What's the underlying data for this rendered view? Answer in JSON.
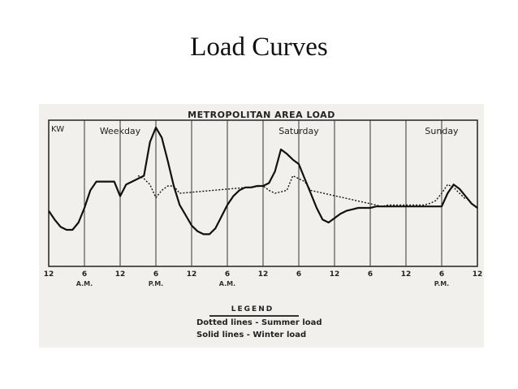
{
  "slide": {
    "title": "Load Curves"
  },
  "chart_data": {
    "type": "line",
    "title": "METROPOLITAN AREA LOAD",
    "ylabel": "KW",
    "day_labels": [
      "Weekday",
      "Saturday",
      "Sunday"
    ],
    "x_tick_labels": [
      "12",
      "6",
      "12",
      "6",
      "12",
      "6",
      "12",
      "6",
      "12",
      "6",
      "12",
      "6",
      "12"
    ],
    "x_sub_labels": [
      "A.M.",
      "P.M.",
      "A.M.",
      "P.M."
    ],
    "xlim": [
      0,
      72
    ],
    "ylim": [
      0,
      100
    ],
    "grid": true,
    "series": [
      {
        "name": "Winter load",
        "style": "solid",
        "x": [
          0,
          1,
          2,
          3,
          4,
          5,
          6,
          7,
          8,
          9,
          10,
          11,
          12,
          13,
          14,
          15,
          16,
          17,
          18,
          19,
          20,
          21,
          22,
          23,
          24,
          25,
          26,
          27,
          28,
          29,
          30,
          31,
          32,
          33,
          34,
          35,
          36,
          37,
          38,
          39,
          40,
          41,
          42,
          43,
          44,
          45,
          46,
          47,
          48,
          49,
          50,
          51,
          52,
          53,
          54,
          55,
          56,
          57,
          58,
          59,
          60,
          61,
          62,
          63,
          64,
          65,
          66,
          67,
          68,
          69,
          70,
          71,
          72
        ],
        "y": [
          38,
          32,
          27,
          25,
          25,
          30,
          40,
          52,
          58,
          58,
          58,
          58,
          48,
          56,
          58,
          60,
          62,
          85,
          95,
          88,
          72,
          55,
          42,
          35,
          28,
          24,
          22,
          22,
          26,
          34,
          42,
          48,
          52,
          54,
          54,
          55,
          55,
          57,
          65,
          80,
          77,
          73,
          70,
          60,
          50,
          40,
          32,
          30,
          33,
          36,
          38,
          39,
          40,
          40,
          40,
          41,
          41,
          41,
          41,
          41,
          41,
          41,
          41,
          41,
          41,
          41,
          41,
          50,
          56,
          53,
          48,
          43,
          40
        ]
      },
      {
        "name": "Summer load",
        "style": "dotted",
        "x": [
          15,
          16,
          17,
          18,
          19,
          20,
          21,
          22,
          36,
          37,
          38,
          39,
          40,
          41,
          42,
          43,
          44,
          56,
          57,
          58,
          59,
          60,
          61,
          62,
          63,
          64,
          65,
          66,
          67,
          68,
          69,
          70
        ],
        "y": [
          62,
          60,
          56,
          47,
          52,
          55,
          55,
          50,
          55,
          52,
          50,
          51,
          52,
          62,
          60,
          58,
          52,
          41,
          42,
          42,
          42,
          42,
          42,
          42,
          42,
          43,
          45,
          50,
          56,
          54,
          50,
          46
        ]
      }
    ],
    "legend": {
      "title": "LEGEND",
      "entries": [
        "Dotted lines - Summer load",
        "Solid lines - Winter load"
      ]
    }
  }
}
